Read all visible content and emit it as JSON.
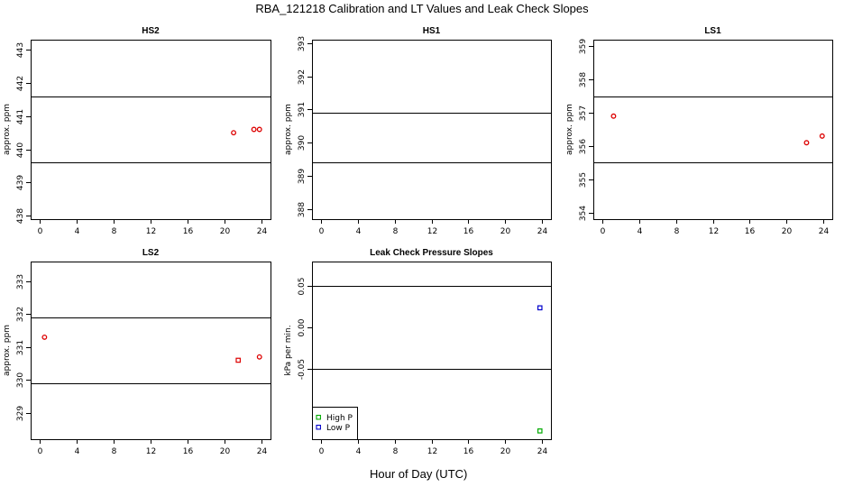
{
  "page": {
    "title": "RBA_121218  Calibration and LT Values and Leak Check Slopes",
    "xaxis_title": "Hour of Day (UTC)"
  },
  "chart_data": [
    {
      "id": "hs2",
      "type": "scatter",
      "title": "HS2",
      "ylabel": "approx. ppm",
      "xlim": [
        -1,
        25
      ],
      "ylim": [
        437.9,
        443.3
      ],
      "xticks": [
        0,
        4,
        8,
        12,
        16,
        20,
        24
      ],
      "yticks": [
        438,
        439,
        440,
        441,
        442,
        443
      ],
      "reference_lines": [
        439.6,
        441.6
      ],
      "series": [
        {
          "color": "#dd0000",
          "marker": "circle",
          "points": [
            [
              21.0,
              440.5
            ],
            [
              23.2,
              440.6
            ],
            [
              23.8,
              440.6
            ]
          ]
        }
      ]
    },
    {
      "id": "hs1",
      "type": "scatter",
      "title": "HS1",
      "ylabel": "approx. ppm",
      "xlim": [
        -1,
        25
      ],
      "ylim": [
        387.7,
        393.1
      ],
      "xticks": [
        0,
        4,
        8,
        12,
        16,
        20,
        24
      ],
      "yticks": [
        388,
        389,
        390,
        391,
        392,
        393
      ],
      "reference_lines": [
        389.4,
        390.9
      ],
      "series": []
    },
    {
      "id": "ls1",
      "type": "scatter",
      "title": "LS1",
      "ylabel": "approx. ppm",
      "xlim": [
        -1,
        25
      ],
      "ylim": [
        353.8,
        359.2
      ],
      "xticks": [
        0,
        4,
        8,
        12,
        16,
        20,
        24
      ],
      "yticks": [
        354,
        355,
        356,
        357,
        358,
        359
      ],
      "reference_lines": [
        355.5,
        357.5
      ],
      "series": [
        {
          "color": "#dd0000",
          "marker": "circle",
          "points": [
            [
              1.2,
              356.9
            ],
            [
              22.2,
              356.1
            ],
            [
              23.9,
              356.3
            ]
          ]
        }
      ]
    },
    {
      "id": "ls2",
      "type": "scatter",
      "title": "LS2",
      "ylabel": "approx. ppm",
      "xlim": [
        -1,
        25
      ],
      "ylim": [
        328.2,
        333.6
      ],
      "xticks": [
        0,
        4,
        8,
        12,
        16,
        20,
        24
      ],
      "yticks": [
        329,
        330,
        331,
        332,
        333
      ],
      "reference_lines": [
        329.9,
        331.9
      ],
      "series": [
        {
          "color": "#dd0000",
          "marker": "circle",
          "points": [
            [
              0.5,
              331.3
            ],
            [
              23.8,
              330.7
            ]
          ]
        },
        {
          "color": "#dd0000",
          "marker": "square",
          "points": [
            [
              21.5,
              330.6
            ]
          ]
        }
      ]
    },
    {
      "id": "leak",
      "type": "scatter",
      "title": "Leak Check Pressure Slopes",
      "ylabel": "kPa per min.",
      "xlim": [
        -1,
        25
      ],
      "ylim": [
        -0.135,
        0.08
      ],
      "xticks": [
        0,
        4,
        8,
        12,
        16,
        20,
        24
      ],
      "yticks": [
        -0.05,
        0.0,
        0.05
      ],
      "ytick_labels": [
        "-0.05",
        "0.00",
        "0.05"
      ],
      "reference_lines": [
        -0.05,
        0.05
      ],
      "legend": {
        "position": "bottom-left",
        "entries": [
          "High P",
          "Low P"
        ]
      },
      "series": [
        {
          "name": "High P",
          "color": "#00aa00",
          "marker": "square",
          "points": [
            [
              23.8,
              -0.125
            ]
          ]
        },
        {
          "name": "Low P",
          "color": "#0000cc",
          "marker": "square",
          "points": [
            [
              23.8,
              0.024
            ]
          ]
        }
      ]
    }
  ]
}
